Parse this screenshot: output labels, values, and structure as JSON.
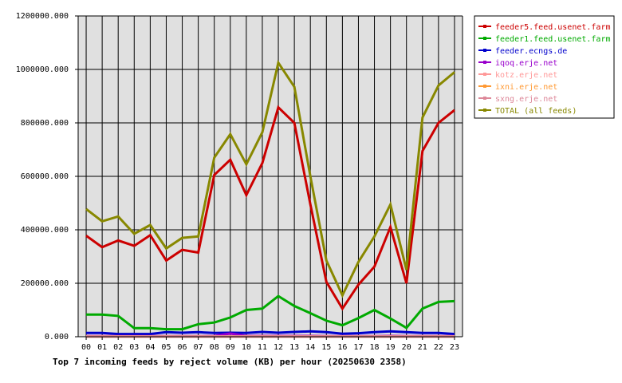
{
  "chart_data": {
    "type": "line",
    "title": "Top 7 incoming feeds by reject volume (KB) per hour (20250630 2358)",
    "xlabel": "",
    "ylabel": "",
    "categories": [
      "00",
      "01",
      "02",
      "03",
      "04",
      "05",
      "06",
      "07",
      "08",
      "09",
      "10",
      "11",
      "12",
      "13",
      "14",
      "15",
      "16",
      "17",
      "18",
      "19",
      "20",
      "21",
      "22",
      "23"
    ],
    "ylim": [
      0,
      1200000
    ],
    "yticks": [
      "0.000",
      "200000.000",
      "400000.000",
      "600000.000",
      "800000.000",
      "1000000.000",
      "1200000.000"
    ],
    "ytick_values": [
      0,
      200000,
      400000,
      600000,
      800000,
      1000000,
      1200000
    ],
    "grid": true,
    "legend_position": "right",
    "series": [
      {
        "name": "feeder5.feed.usenet.farm",
        "color": "#cc0000",
        "values": [
          378000,
          335000,
          360000,
          340000,
          380000,
          285000,
          325000,
          315000,
          605000,
          662000,
          530000,
          650000,
          858000,
          800000,
          495000,
          205000,
          105000,
          195000,
          262000,
          410000,
          200000,
          695000,
          800000,
          848000
        ]
      },
      {
        "name": "feeder1.feed.usenet.farm",
        "color": "#00aa00",
        "values": [
          83000,
          83000,
          78000,
          32000,
          32000,
          28000,
          28000,
          47000,
          53000,
          72000,
          100000,
          105000,
          152000,
          115000,
          88000,
          60000,
          43000,
          70000,
          100000,
          68000,
          33000,
          105000,
          130000,
          133000
        ]
      },
      {
        "name": "feeder.ecngs.de",
        "color": "#0000cc",
        "values": [
          14000,
          14000,
          10000,
          10000,
          10000,
          17000,
          15000,
          17000,
          14000,
          15000,
          14000,
          18000,
          15000,
          18000,
          20000,
          17000,
          11000,
          13000,
          17000,
          20000,
          17000,
          14000,
          14000,
          10000
        ]
      },
      {
        "name": "iqoq.erje.net",
        "color": "#9900cc",
        "values": [
          2000,
          2000,
          2000,
          2000,
          2000,
          2000,
          2000,
          2000,
          3000,
          12000,
          3000,
          3000,
          3000,
          3000,
          3000,
          2000,
          2000,
          2000,
          2000,
          3000,
          2000,
          2000,
          2000,
          2000
        ]
      },
      {
        "name": "kotz.erje.net",
        "color": "#ff9999",
        "values": [
          1000,
          1000,
          1000,
          1000,
          1000,
          1000,
          1000,
          1000,
          1000,
          1000,
          1000,
          1000,
          1000,
          1000,
          1000,
          1000,
          1000,
          1000,
          1000,
          1000,
          1000,
          1000,
          1000,
          1000
        ]
      },
      {
        "name": "ixni.erje.net",
        "color": "#ff9933",
        "values": [
          500,
          500,
          500,
          500,
          500,
          500,
          500,
          500,
          500,
          500,
          500,
          500,
          500,
          500,
          500,
          500,
          500,
          500,
          500,
          500,
          500,
          500,
          500,
          500
        ]
      },
      {
        "name": "sxng.erje.net",
        "color": "#dd8899",
        "values": [
          500,
          500,
          500,
          500,
          500,
          500,
          500,
          500,
          500,
          500,
          500,
          500,
          500,
          500,
          500,
          500,
          500,
          500,
          500,
          500,
          500,
          500,
          500,
          500
        ]
      },
      {
        "name": "TOTAL (all feeds)",
        "color": "#888800",
        "values": [
          478000,
          432000,
          450000,
          385000,
          418000,
          330000,
          370000,
          375000,
          670000,
          758000,
          645000,
          765000,
          1025000,
          935000,
          600000,
          285000,
          155000,
          280000,
          375000,
          495000,
          250000,
          820000,
          940000,
          990000
        ]
      }
    ]
  },
  "colors": {
    "plot_background": "#e0e0e0",
    "grid": "#000000",
    "axis": "#000000"
  }
}
